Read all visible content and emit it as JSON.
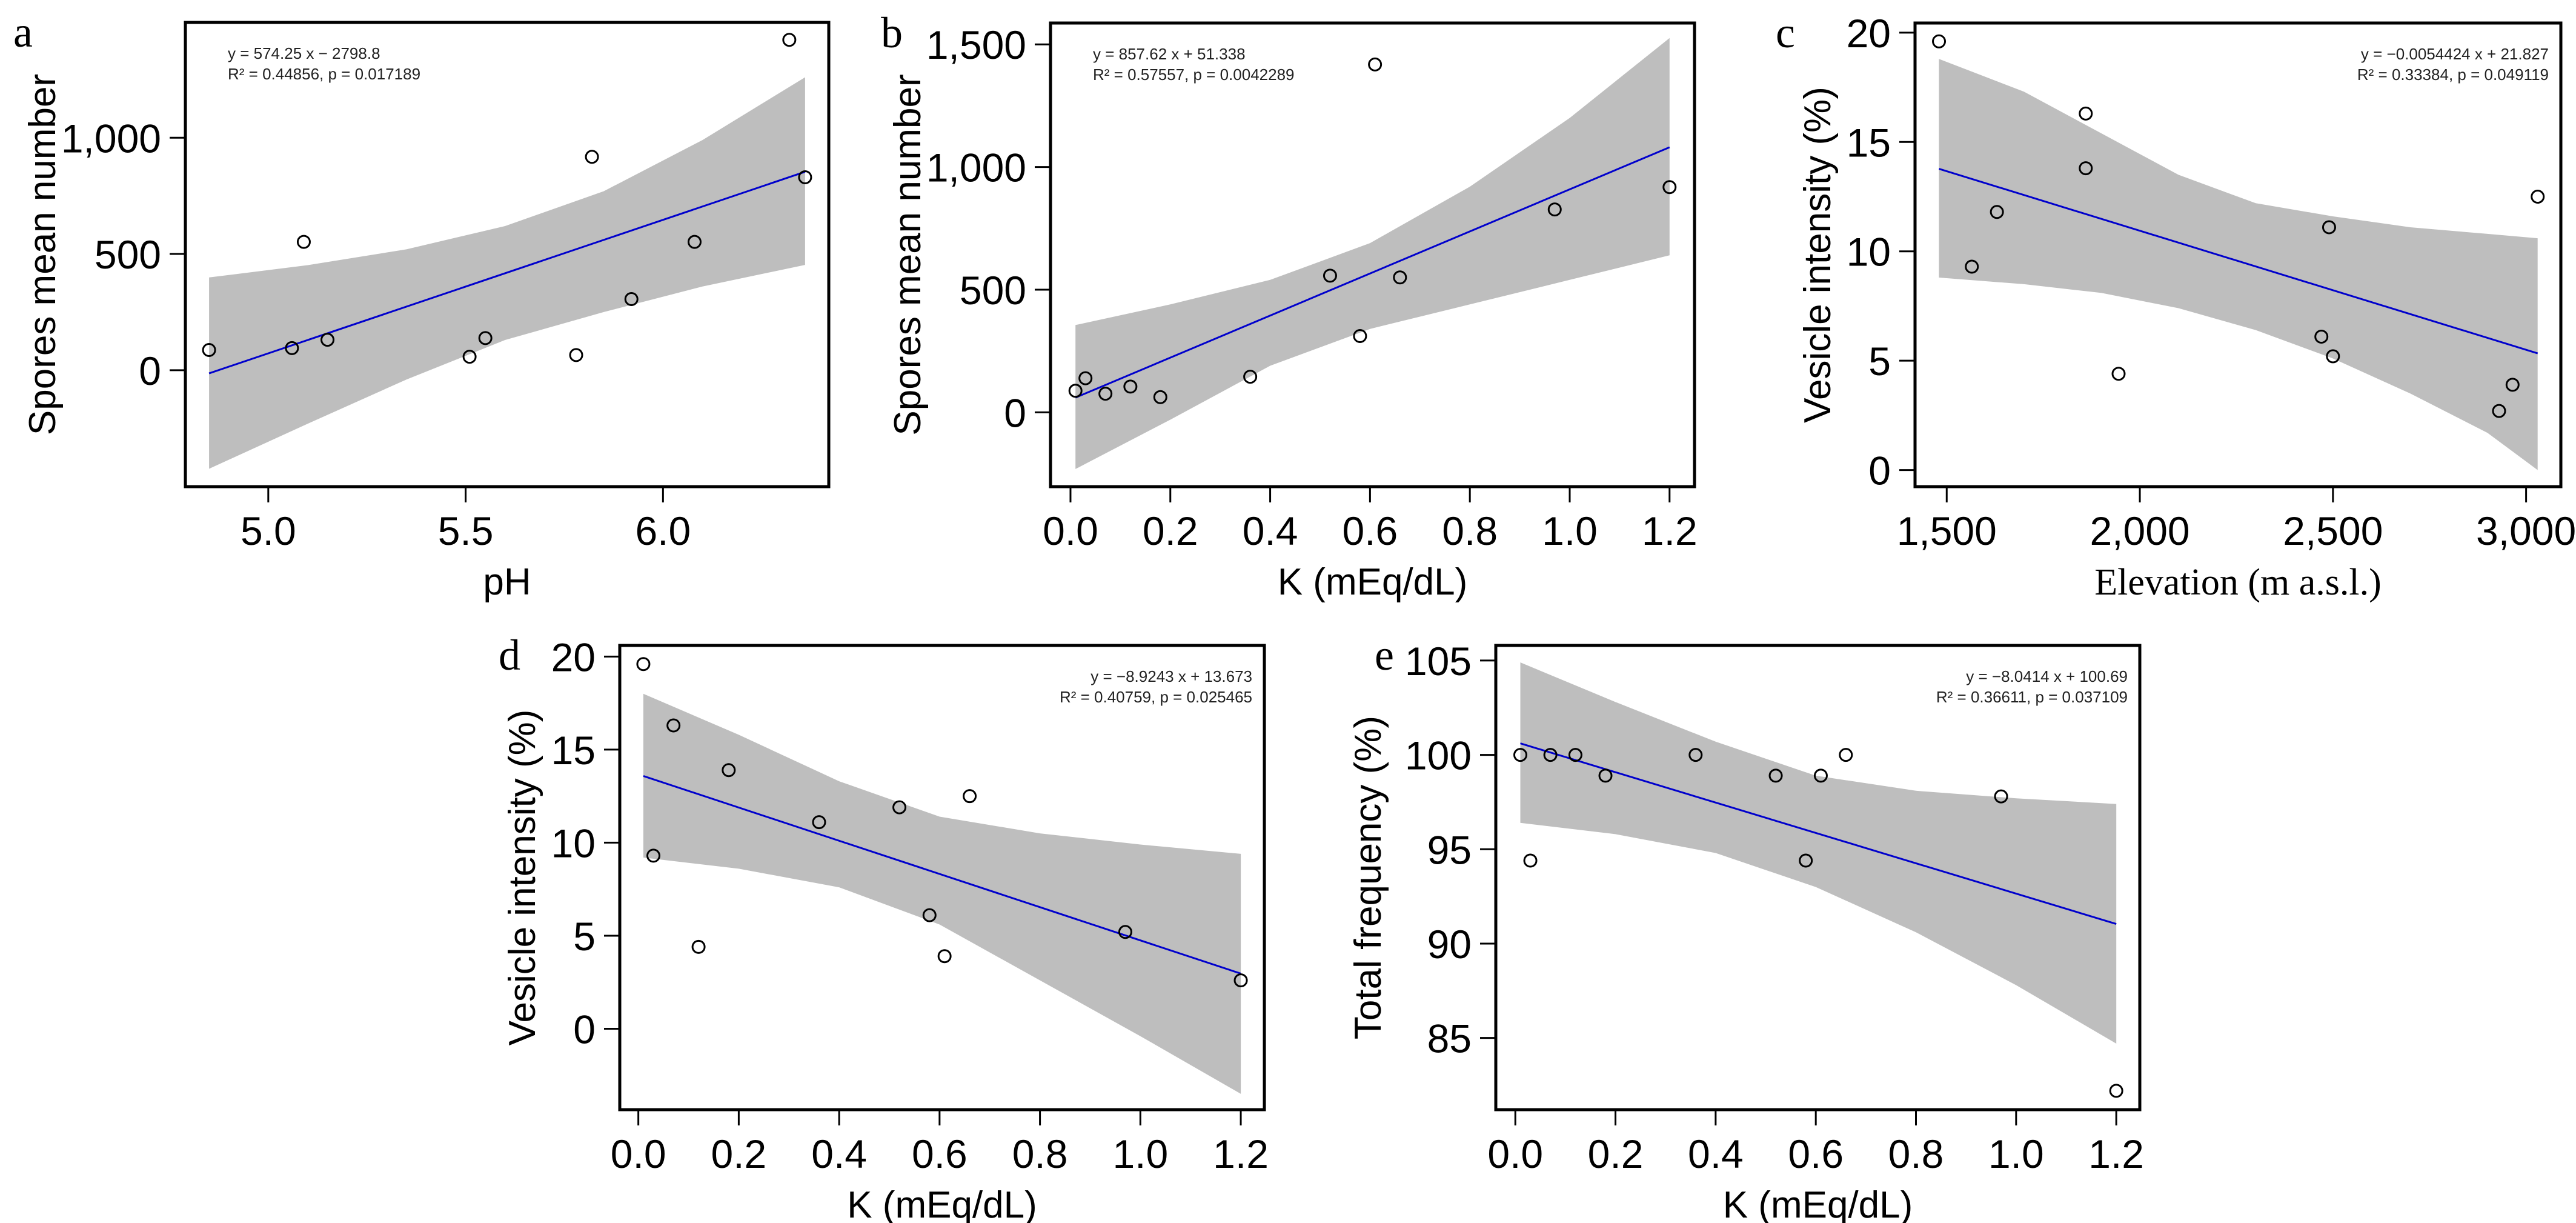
{
  "figure": {
    "band_color": "#bebebe",
    "line_color": "#0000cc",
    "point_color": "#000000"
  },
  "chart_data": [
    {
      "id": "a",
      "type": "scatter",
      "panel_label": "a",
      "title": "",
      "xlabel": "pH",
      "ylabel": "Spores mean number",
      "xlim": [
        4.79,
        6.42
      ],
      "ylim": [
        -501,
        1496
      ],
      "xticks": [
        5.0,
        5.5,
        6.0
      ],
      "xtick_labels": [
        "5.0",
        "5.5",
        "6.0"
      ],
      "yticks": [
        0,
        500,
        1000
      ],
      "ytick_labels": [
        "0",
        "500",
        "1,000"
      ],
      "grid": false,
      "points": [
        [
          4.85,
          87
        ],
        [
          5.06,
          95
        ],
        [
          5.09,
          552
        ],
        [
          5.15,
          131
        ],
        [
          5.51,
          58
        ],
        [
          5.55,
          138
        ],
        [
          5.78,
          65
        ],
        [
          5.82,
          918
        ],
        [
          5.92,
          306
        ],
        [
          6.08,
          552
        ],
        [
          6.32,
          1421
        ],
        [
          6.36,
          830
        ]
      ],
      "fit": {
        "slope": 574.25,
        "intercept": -2798.8,
        "x_range": [
          4.85,
          6.36
        ]
      },
      "ci_band": {
        "x": [
          4.85,
          5.1,
          5.35,
          5.6,
          5.85,
          6.1,
          6.36
        ],
        "upper": [
          399,
          452,
          520,
          620,
          770,
          990,
          1260
        ],
        "lower": [
          -424,
          -230,
          -40,
          130,
          250,
          360,
          453
        ]
      },
      "equation": "y = 574.25 x − 2798.8",
      "stats": "R² = 0.44856,  p = 0.017189",
      "annotation_position": "top-left"
    },
    {
      "id": "b",
      "type": "scatter",
      "panel_label": "b",
      "title": "",
      "xlabel": "K (mEq/dL)",
      "ylabel": "Spores mean number",
      "xlim": [
        -0.04,
        1.25
      ],
      "ylim": [
        -303,
        1587
      ],
      "xticks": [
        0.0,
        0.2,
        0.4,
        0.6,
        0.8,
        1.0,
        1.2
      ],
      "xtick_labels": [
        "0.0",
        "0.2",
        "0.4",
        "0.6",
        "0.8",
        "1.0",
        "1.2"
      ],
      "yticks": [
        0,
        500,
        1000,
        1500
      ],
      "ytick_labels": [
        "0",
        "500",
        "1,000",
        "1,500"
      ],
      "grid": false,
      "points": [
        [
          0.01,
          88
        ],
        [
          0.03,
          139
        ],
        [
          0.07,
          76
        ],
        [
          0.12,
          105
        ],
        [
          0.18,
          62
        ],
        [
          0.36,
          145
        ],
        [
          0.52,
          557
        ],
        [
          0.58,
          311
        ],
        [
          0.61,
          1418
        ],
        [
          0.66,
          550
        ],
        [
          0.97,
          827
        ],
        [
          1.2,
          918
        ]
      ],
      "fit": {
        "slope": 857.62,
        "intercept": 51.338,
        "x_range": [
          0.01,
          1.2
        ]
      },
      "ci_band": {
        "x": [
          0.01,
          0.2,
          0.4,
          0.6,
          0.8,
          1.0,
          1.2
        ],
        "upper": [
          356,
          440,
          540,
          690,
          920,
          1200,
          1526
        ],
        "lower": [
          -231,
          -30,
          190,
          340,
          440,
          540,
          640
        ]
      },
      "equation": "y = 857.62 x + 51.338",
      "stats": "R² = 0.57557,  p = 0.0042289",
      "annotation_position": "top-left"
    },
    {
      "id": "c",
      "type": "scatter",
      "panel_label": "c",
      "title": "",
      "xlabel": "Elevation (m a.s.l.)",
      "ylabel": "Vesicle intensity (%)",
      "xlim": [
        1418,
        3090
      ],
      "ylim": [
        -0.76,
        20.44
      ],
      "xticks": [
        1500,
        2000,
        2500,
        3000
      ],
      "xtick_labels": [
        "1,500",
        "2,000",
        "2,500",
        "3,000"
      ],
      "yticks": [
        0,
        5,
        10,
        15,
        20
      ],
      "ytick_labels": [
        "0",
        "5",
        "10",
        "15",
        "20"
      ],
      "grid": false,
      "points": [
        [
          1480,
          19.6
        ],
        [
          1565,
          9.3
        ],
        [
          1630,
          11.8
        ],
        [
          1860,
          16.3
        ],
        [
          1860,
          13.8
        ],
        [
          1945,
          4.4
        ],
        [
          2470,
          6.1
        ],
        [
          2490,
          11.1
        ],
        [
          2500,
          5.2
        ],
        [
          2930,
          2.7
        ],
        [
          2965,
          3.9
        ],
        [
          3030,
          12.5
        ]
      ],
      "fit": {
        "slope": -0.0054424,
        "intercept": 21.827,
        "x_range": [
          1480,
          3030
        ]
      },
      "ci_band": {
        "x": [
          1480,
          1700,
          1900,
          2100,
          2300,
          2500,
          2700,
          2900,
          3030
        ],
        "upper": [
          18.8,
          17.3,
          15.4,
          13.5,
          12.2,
          11.6,
          11.1,
          10.8,
          10.6
        ],
        "lower": [
          8.8,
          8.5,
          8.1,
          7.4,
          6.4,
          5.1,
          3.5,
          1.7,
          0.0
        ]
      },
      "equation": "y = −0.0054424 x + 21.827",
      "stats": "R² = 0.33384,  p = 0.049119",
      "annotation_position": "top-right"
    },
    {
      "id": "d",
      "type": "scatter",
      "panel_label": "d",
      "title": "",
      "xlabel": "K (mEq/dL)",
      "ylabel": "Vesicle intensity (%)",
      "xlim": [
        -0.037,
        1.247
      ],
      "ylim": [
        -4.35,
        20.6
      ],
      "xticks": [
        0.0,
        0.2,
        0.4,
        0.6,
        0.8,
        1.0,
        1.2
      ],
      "xtick_labels": [
        "0.0",
        "0.2",
        "0.4",
        "0.6",
        "0.8",
        "1.0",
        "1.2"
      ],
      "yticks": [
        0,
        5,
        10,
        15,
        20
      ],
      "ytick_labels": [
        "0",
        "5",
        "10",
        "15",
        "20"
      ],
      "grid": false,
      "points": [
        [
          0.01,
          19.6
        ],
        [
          0.03,
          9.3
        ],
        [
          0.07,
          16.3
        ],
        [
          0.12,
          4.4
        ],
        [
          0.18,
          13.9
        ],
        [
          0.36,
          11.1
        ],
        [
          0.52,
          11.9
        ],
        [
          0.58,
          6.1
        ],
        [
          0.61,
          3.9
        ],
        [
          0.66,
          12.5
        ],
        [
          0.97,
          5.2
        ],
        [
          1.2,
          2.6
        ]
      ],
      "fit": {
        "slope": -8.9243,
        "intercept": 13.673,
        "x_range": [
          0.01,
          1.2
        ]
      },
      "ci_band": {
        "x": [
          0.01,
          0.2,
          0.4,
          0.6,
          0.8,
          1.0,
          1.2
        ],
        "upper": [
          18.0,
          15.8,
          13.3,
          11.4,
          10.5,
          9.9,
          9.4
        ],
        "lower": [
          9.2,
          8.6,
          7.6,
          5.6,
          2.6,
          -0.4,
          -3.5
        ]
      },
      "equation": "y = −8.9243 x + 13.673",
      "stats": "R² = 0.40759,  p = 0.025465",
      "annotation_position": "top-right"
    },
    {
      "id": "e",
      "type": "scatter",
      "panel_label": "e",
      "title": "",
      "xlabel": "K (mEq/dL)",
      "ylabel": "Total frequency (%)",
      "xlim": [
        -0.039,
        1.247
      ],
      "ylim": [
        81.2,
        105.8
      ],
      "xticks": [
        0.0,
        0.2,
        0.4,
        0.6,
        0.8,
        1.0,
        1.2
      ],
      "xtick_labels": [
        "0.0",
        "0.2",
        "0.4",
        "0.6",
        "0.8",
        "1.0",
        "1.2"
      ],
      "yticks": [
        85,
        90,
        95,
        100,
        105
      ],
      "ytick_labels": [
        "85",
        "90",
        "95",
        "100",
        "105"
      ],
      "grid": false,
      "points": [
        [
          0.01,
          100.0
        ],
        [
          0.03,
          94.4
        ],
        [
          0.07,
          100.0
        ],
        [
          0.12,
          100.0
        ],
        [
          0.18,
          98.9
        ],
        [
          0.36,
          100.0
        ],
        [
          0.52,
          98.9
        ],
        [
          0.58,
          94.4
        ],
        [
          0.61,
          98.9
        ],
        [
          0.66,
          100.0
        ],
        [
          0.97,
          97.8
        ],
        [
          1.2,
          82.2
        ]
      ],
      "fit": {
        "slope": -8.0414,
        "intercept": 100.69,
        "x_range": [
          0.01,
          1.2
        ]
      },
      "ci_band": {
        "x": [
          0.01,
          0.2,
          0.4,
          0.6,
          0.8,
          1.0,
          1.2
        ],
        "upper": [
          104.9,
          102.8,
          100.7,
          98.9,
          98.1,
          97.7,
          97.4
        ],
        "lower": [
          96.4,
          95.8,
          94.8,
          93.0,
          90.6,
          87.8,
          84.7
        ]
      },
      "equation": "y = −8.0414 x + 100.69",
      "stats": "R² = 0.36611,  p = 0.037109",
      "annotation_position": "top-right"
    }
  ]
}
